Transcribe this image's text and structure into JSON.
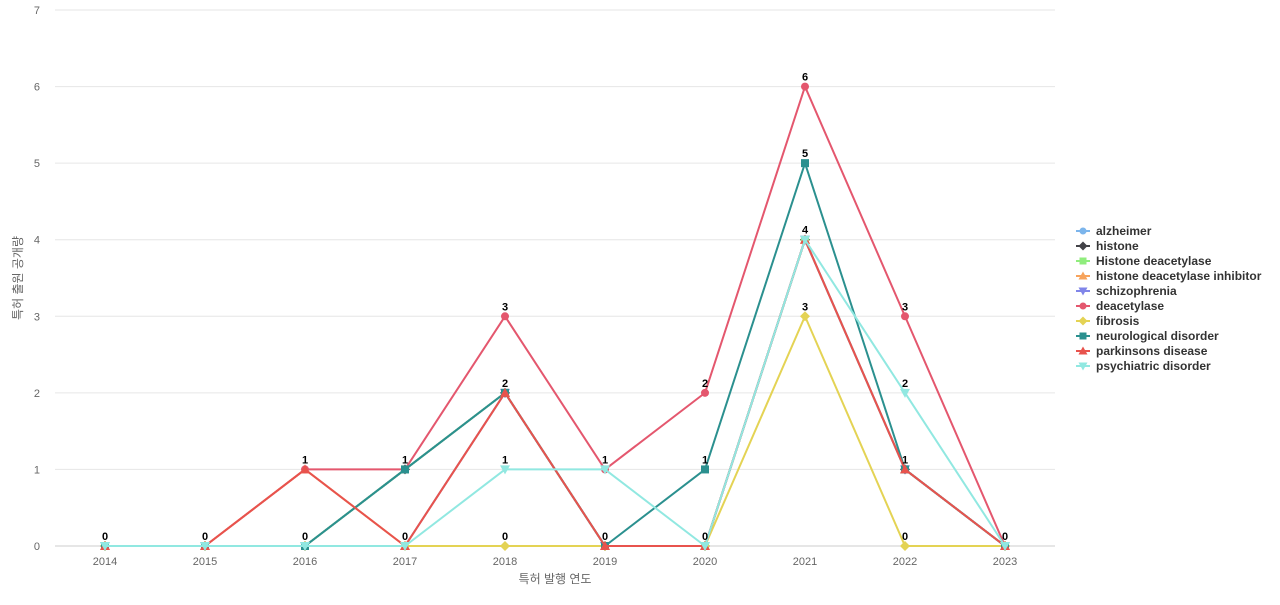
{
  "chart_data": {
    "type": "line",
    "title": "",
    "xlabel": "특허 발행 연도",
    "ylabel": "특허 출원 공개량",
    "ylim": [
      0,
      7
    ],
    "yticks": [
      0,
      1,
      2,
      3,
      4,
      5,
      6,
      7
    ],
    "grid": true,
    "legend_position": "right",
    "categories": [
      "2014",
      "2015",
      "2016",
      "2017",
      "2018",
      "2019",
      "2020",
      "2021",
      "2022",
      "2023"
    ],
    "series": [
      {
        "name": "alzheimer",
        "color": "#7cb5ec",
        "marker": "circle",
        "values": [
          0,
          0,
          0,
          1,
          2,
          0,
          0,
          4,
          1,
          0
        ]
      },
      {
        "name": "histone",
        "color": "#434348",
        "marker": "diamond",
        "values": [
          0,
          0,
          0,
          1,
          2,
          0,
          0,
          4,
          1,
          0
        ]
      },
      {
        "name": "Histone deacetylase",
        "color": "#90ed7d",
        "marker": "square",
        "values": [
          0,
          0,
          0,
          1,
          2,
          0,
          0,
          4,
          1,
          0
        ]
      },
      {
        "name": "histone deacetylase inhibitor",
        "color": "#f7a35c",
        "marker": "triangle",
        "values": [
          0,
          0,
          1,
          0,
          2,
          0,
          0,
          4,
          1,
          0
        ]
      },
      {
        "name": "schizophrenia",
        "color": "#8085e9",
        "marker": "triangle-down",
        "values": [
          0,
          0,
          0,
          0,
          2,
          0,
          0,
          4,
          1,
          0
        ]
      },
      {
        "name": "deacetylase",
        "color": "#e4576e",
        "marker": "circle",
        "values": [
          0,
          0,
          1,
          1,
          3,
          1,
          2,
          6,
          3,
          0
        ]
      },
      {
        "name": "fibrosis",
        "color": "#e4d354",
        "marker": "diamond",
        "values": [
          0,
          0,
          0,
          0,
          0,
          0,
          0,
          3,
          0,
          0
        ]
      },
      {
        "name": "neurological disorder",
        "color": "#2b908f",
        "marker": "square",
        "values": [
          0,
          0,
          0,
          1,
          2,
          0,
          1,
          5,
          1,
          0
        ]
      },
      {
        "name": "parkinsons disease",
        "color": "#e8534d",
        "marker": "triangle",
        "values": [
          0,
          0,
          1,
          0,
          2,
          0,
          0,
          4,
          1,
          0
        ]
      },
      {
        "name": "psychiatric disorder",
        "color": "#91e8e1",
        "marker": "triangle-down",
        "values": [
          0,
          0,
          0,
          0,
          1,
          1,
          0,
          4,
          2,
          0
        ]
      }
    ],
    "data_labels": [
      {
        "x": "2014",
        "text": "0",
        "at": 0
      },
      {
        "x": "2015",
        "text": "0",
        "at": 0
      },
      {
        "x": "2016",
        "text": "1",
        "at": 1
      },
      {
        "x": "2016",
        "text": "0",
        "at": 0
      },
      {
        "x": "2017",
        "text": "1",
        "at": 1
      },
      {
        "x": "2017",
        "text": "0",
        "at": 0
      },
      {
        "x": "2018",
        "text": "3",
        "at": 3
      },
      {
        "x": "2018",
        "text": "2",
        "at": 2
      },
      {
        "x": "2018",
        "text": "1",
        "at": 1
      },
      {
        "x": "2018",
        "text": "0",
        "at": 0
      },
      {
        "x": "2019",
        "text": "1",
        "at": 1
      },
      {
        "x": "2019",
        "text": "0",
        "at": 0
      },
      {
        "x": "2020",
        "text": "2",
        "at": 2
      },
      {
        "x": "2020",
        "text": "1",
        "at": 1
      },
      {
        "x": "2020",
        "text": "0",
        "at": 0
      },
      {
        "x": "2021",
        "text": "6",
        "at": 6
      },
      {
        "x": "2021",
        "text": "5",
        "at": 5
      },
      {
        "x": "2021",
        "text": "4",
        "at": 4
      },
      {
        "x": "2021",
        "text": "3",
        "at": 3
      },
      {
        "x": "2022",
        "text": "3",
        "at": 3
      },
      {
        "x": "2022",
        "text": "2",
        "at": 2
      },
      {
        "x": "2022",
        "text": "1",
        "at": 1
      },
      {
        "x": "2022",
        "text": "0",
        "at": 0
      },
      {
        "x": "2023",
        "text": "0",
        "at": 0
      }
    ]
  }
}
